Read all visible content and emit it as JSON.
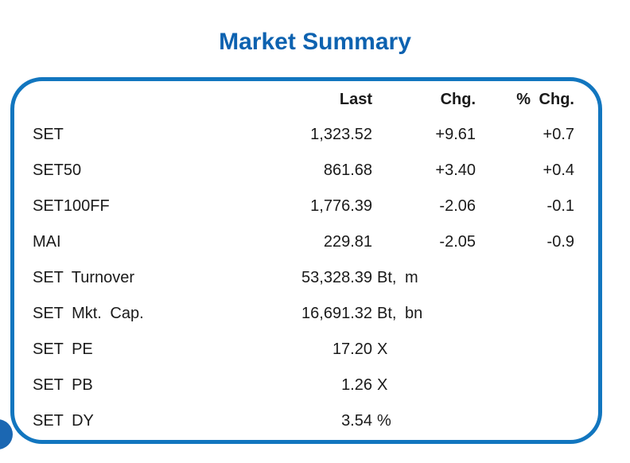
{
  "title": "Market Summary",
  "colors": {
    "accent": "#1276bf",
    "title": "#0d62b0",
    "circle": "#1b67b2"
  },
  "table": {
    "headers": {
      "last": "Last",
      "chg": "Chg.",
      "pct": "% Chg."
    },
    "rows": [
      {
        "label": "SET",
        "last": "1,323.52",
        "unit": "",
        "chg": "+9.61",
        "pct": "+0.7"
      },
      {
        "label": "SET50",
        "last": "861.68",
        "unit": "",
        "chg": "+3.40",
        "pct": "+0.4"
      },
      {
        "label": "SET100FF",
        "last": "1,776.39",
        "unit": "",
        "chg": "-2.06",
        "pct": "-0.1"
      },
      {
        "label": "MAI",
        "last": "229.81",
        "unit": "",
        "chg": "-2.05",
        "pct": "-0.9"
      },
      {
        "label": "SET Turnover",
        "last": "53,328.39",
        "unit": "Bt, m",
        "chg": "",
        "pct": ""
      },
      {
        "label": "SET Mkt. Cap.",
        "last": "16,691.32",
        "unit": "Bt, bn",
        "chg": "",
        "pct": ""
      },
      {
        "label": "SET PE",
        "last": "17.20",
        "unit": "X",
        "chg": "",
        "pct": ""
      },
      {
        "label": "SET PB",
        "last": "1.26",
        "unit": "X",
        "chg": "",
        "pct": ""
      },
      {
        "label": "SET DY",
        "last": "3.54",
        "unit": "%",
        "chg": "",
        "pct": ""
      }
    ]
  }
}
